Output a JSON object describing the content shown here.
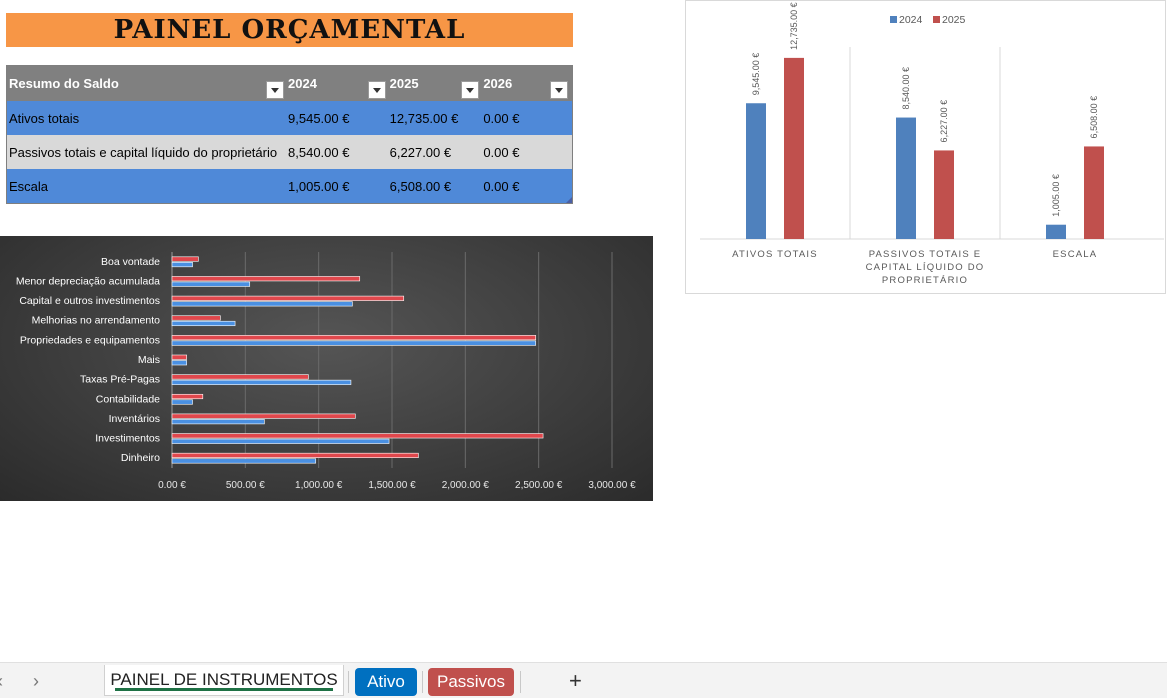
{
  "title": "PAINEL ORÇAMENTAL",
  "table": {
    "headers": [
      "Resumo do Saldo",
      "2024",
      "2025",
      "2026"
    ],
    "rows": [
      [
        "Ativos totais",
        "9,545.00 €",
        "12,735.00 €",
        "0.00 €"
      ],
      [
        "Passivos totais e capital líquido do proprietário",
        "8,540.00 €",
        "6,227.00 €",
        "0.00 €"
      ],
      [
        "Escala",
        "1,005.00 €",
        "6,508.00 €",
        "0.00 €"
      ]
    ]
  },
  "chart_data": [
    {
      "type": "bar",
      "orientation": "horizontal",
      "categories": [
        "Boa vontade",
        "Menor depreciação acumulada",
        "Capital e outros investimentos",
        "Melhorias no arrendamento",
        "Propriedades e equipamentos",
        "Mais",
        "Taxas Pré-Pagas",
        "Contabilidade",
        "Inventários",
        "Investimentos",
        "Dinheiro"
      ],
      "series": [
        {
          "values": [
            180,
            1280,
            1580,
            330,
            2480,
            100,
            930,
            210,
            1250,
            2530,
            1680
          ],
          "color": "#e0474c"
        },
        {
          "values": [
            140,
            530,
            1230,
            430,
            2480,
            100,
            1220,
            140,
            630,
            1480,
            980
          ],
          "color": "#4a90e2"
        }
      ],
      "xticks": [
        "0.00 €",
        "500.00 €",
        "1,000.00 €",
        "1,500.00 €",
        "2,000.00 €",
        "2,500.00 €",
        "3,000.00 €"
      ],
      "xlim": [
        0,
        3000
      ],
      "grid": true
    },
    {
      "type": "bar",
      "categories": [
        "ATIVOS TOTAIS",
        "PASSIVOS TOTAIS E CAPITAL LÍQUIDO DO PROPRIETÁRIO",
        "ESCALA"
      ],
      "category_lines": [
        [
          "ATIVOS TOTAIS"
        ],
        [
          "PASSIVOS TOTAIS E",
          "CAPITAL LÍQUIDO DO",
          "PROPRIETÁRIO"
        ],
        [
          "ESCALA"
        ]
      ],
      "series": [
        {
          "name": "2024",
          "values": [
            9545,
            8540,
            1005
          ],
          "labels": [
            "9,545.00 €",
            "8,540.00 €",
            "1,005.00 €"
          ],
          "color": "#4f81bd"
        },
        {
          "name": "2025",
          "values": [
            12735,
            6227,
            6508
          ],
          "labels": [
            "12,735.00 €",
            "6,227.00 €",
            "6,508.00 €"
          ],
          "color": "#c0504d"
        }
      ],
      "ylim": [
        0,
        13500
      ],
      "legend": "top-center",
      "data_labels": true
    }
  ],
  "tabs": {
    "nav_prev": "‹",
    "nav_next": "›",
    "active": "PAINEL DE INSTRUMENTOS",
    "sheet2": "Ativo",
    "sheet2_color": "#0070c0",
    "sheet3": "Passivos",
    "sheet3_color": "#c0504d",
    "add": "+"
  }
}
